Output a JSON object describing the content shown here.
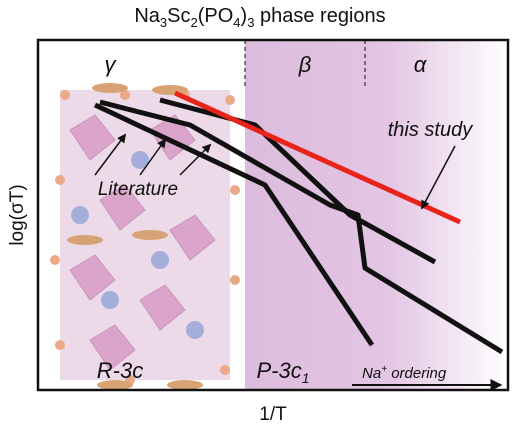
{
  "title": {
    "parts": [
      {
        "text": "Na"
      },
      {
        "text": "3",
        "sub": true
      },
      {
        "text": "Sc"
      },
      {
        "text": "2",
        "sub": true
      },
      {
        "text": "(PO"
      },
      {
        "text": "4",
        "sub": true
      },
      {
        "text": ")"
      },
      {
        "text": "3",
        "sub": true
      },
      {
        "text": " phase regions"
      }
    ]
  },
  "phases": {
    "gamma": "γ",
    "beta": "β",
    "alpha": "α"
  },
  "labels": {
    "this_study": "this study",
    "literature": "Literature",
    "r3c": "R-3c",
    "p3c": "P-3c",
    "p3c_sub": "1",
    "ordering": "Na",
    "ordering_sup": "+",
    "ordering_rest": " ordering"
  },
  "axes": {
    "y": "log(σT)",
    "x": "1/T"
  }
}
